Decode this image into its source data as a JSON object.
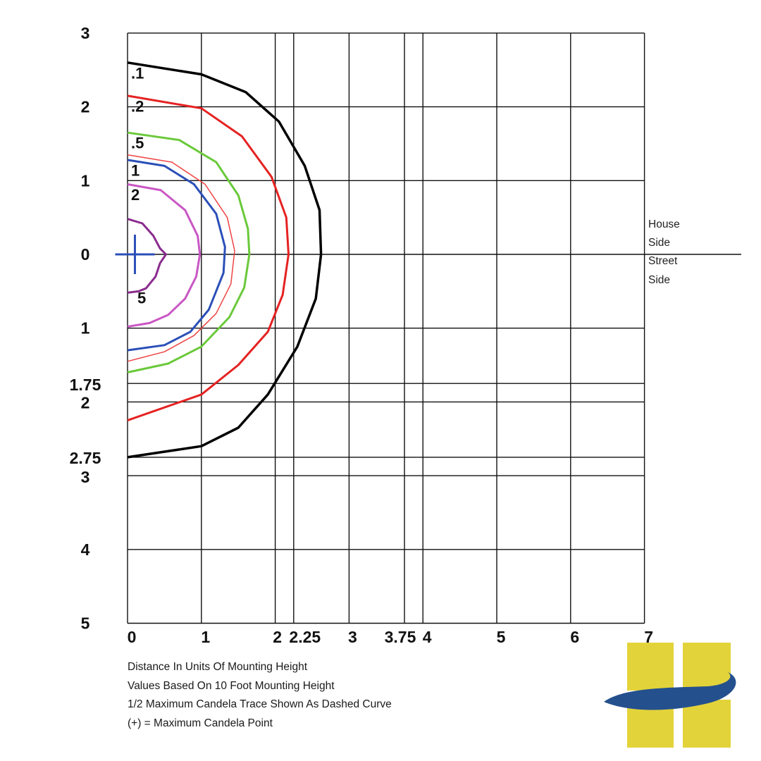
{
  "chart_data": {
    "type": "isofootcandle",
    "x_ticks": [
      {
        "value": 0,
        "label": "0"
      },
      {
        "value": 1,
        "label": "1"
      },
      {
        "value": 2,
        "label": "2"
      },
      {
        "value": 2.25,
        "label": "2.25"
      },
      {
        "value": 3,
        "label": "3"
      },
      {
        "value": 3.75,
        "label": "3.75"
      },
      {
        "value": 4,
        "label": "4"
      },
      {
        "value": 5,
        "label": "5"
      },
      {
        "value": 6,
        "label": "6"
      },
      {
        "value": 7,
        "label": "7"
      }
    ],
    "y_ticks_house": [
      {
        "value": 3,
        "label": "3"
      },
      {
        "value": 2,
        "label": "2"
      },
      {
        "value": 1,
        "label": "1"
      },
      {
        "value": 0,
        "label": "0"
      }
    ],
    "y_ticks_street": [
      {
        "value": 1,
        "label": "1"
      },
      {
        "value": 1.75,
        "label": "1.75"
      },
      {
        "value": 2,
        "label": "2"
      },
      {
        "value": 2.75,
        "label": "2.75"
      },
      {
        "value": 3,
        "label": "3"
      },
      {
        "value": 4,
        "label": "4"
      },
      {
        "value": 5,
        "label": "5"
      }
    ],
    "xlim": [
      0,
      7
    ],
    "ylim_house": [
      0,
      3
    ],
    "ylim_street": [
      0,
      5
    ],
    "grid": true,
    "contours": [
      {
        "label": ".1",
        "color": "#000000",
        "width": 3.5,
        "label_y": 2.5,
        "points": [
          [
            0,
            2.6
          ],
          [
            1,
            2.44
          ],
          [
            1.6,
            2.2
          ],
          [
            2.05,
            1.8
          ],
          [
            2.4,
            1.2
          ],
          [
            2.6,
            0.6
          ],
          [
            2.62,
            0
          ],
          [
            2.55,
            -0.6
          ],
          [
            2.3,
            -1.25
          ],
          [
            1.9,
            -1.9
          ],
          [
            1.5,
            -2.35
          ],
          [
            1,
            -2.6
          ],
          [
            0,
            -2.75
          ]
        ]
      },
      {
        "label": ".2",
        "color": "#e52222",
        "width": 3,
        "label_y": 2.05,
        "points": [
          [
            0,
            2.15
          ],
          [
            1,
            1.98
          ],
          [
            1.55,
            1.6
          ],
          [
            1.95,
            1.05
          ],
          [
            2.15,
            0.5
          ],
          [
            2.18,
            0
          ],
          [
            2.1,
            -0.55
          ],
          [
            1.9,
            -1.05
          ],
          [
            1.5,
            -1.5
          ],
          [
            1,
            -1.9
          ],
          [
            0,
            -2.25
          ]
        ]
      },
      {
        "label": ".5",
        "color": "#6ac93a",
        "width": 3,
        "label_y": 1.55,
        "points": [
          [
            0,
            1.65
          ],
          [
            0.7,
            1.55
          ],
          [
            1.2,
            1.25
          ],
          [
            1.5,
            0.8
          ],
          [
            1.63,
            0.35
          ],
          [
            1.65,
            0
          ],
          [
            1.58,
            -0.45
          ],
          [
            1.38,
            -0.85
          ],
          [
            1,
            -1.25
          ],
          [
            0.55,
            -1.48
          ],
          [
            0,
            -1.6
          ]
        ]
      },
      {
        "label": "",
        "color": "#ee4444",
        "width": 1.5,
        "label_y": 0,
        "points": [
          [
            0,
            1.35
          ],
          [
            0.6,
            1.25
          ],
          [
            1.05,
            0.95
          ],
          [
            1.35,
            0.5
          ],
          [
            1.45,
            0.05
          ],
          [
            1.4,
            -0.4
          ],
          [
            1.2,
            -0.8
          ],
          [
            0.9,
            -1.1
          ],
          [
            0.5,
            -1.32
          ],
          [
            0,
            -1.45
          ]
        ]
      },
      {
        "label": "1",
        "color": "#2b4fb8",
        "width": 3,
        "label_y": 1.18,
        "points": [
          [
            0,
            1.28
          ],
          [
            0.5,
            1.2
          ],
          [
            0.9,
            0.95
          ],
          [
            1.2,
            0.55
          ],
          [
            1.32,
            0.1
          ],
          [
            1.3,
            -0.25
          ],
          [
            1.1,
            -0.75
          ],
          [
            0.85,
            -1.05
          ],
          [
            0.5,
            -1.23
          ],
          [
            0,
            -1.3
          ]
        ]
      },
      {
        "label": "2",
        "color": "#c957c4",
        "width": 3,
        "label_y": 0.85,
        "points": [
          [
            0,
            0.95
          ],
          [
            0.45,
            0.87
          ],
          [
            0.78,
            0.6
          ],
          [
            0.95,
            0.25
          ],
          [
            0.98,
            0
          ],
          [
            0.93,
            -0.3
          ],
          [
            0.78,
            -0.6
          ],
          [
            0.55,
            -0.82
          ],
          [
            0.3,
            -0.93
          ],
          [
            0,
            -0.98
          ]
        ]
      },
      {
        "label": "5",
        "color": "#8a2c8d",
        "width": 3,
        "label_y": -0.55,
        "points": [
          [
            0,
            0.48
          ],
          [
            0.2,
            0.42
          ],
          [
            0.35,
            0.25
          ],
          [
            0.44,
            0.08
          ],
          [
            0.52,
            0
          ],
          [
            0.44,
            -0.12
          ],
          [
            0.38,
            -0.3
          ],
          [
            0.25,
            -0.46
          ],
          [
            0.15,
            -0.5
          ],
          [
            0,
            -0.52
          ]
        ]
      }
    ],
    "max_candela_point": {
      "x": 0.1,
      "y": 0
    },
    "notes": [
      "Distance In Units Of Mounting Height",
      "Values Based On 10 Foot Mounting Height",
      "1/2 Maximum Candela Trace Shown As Dashed Curve",
      "(+) = Maximum Candela Point"
    ],
    "side_labels": {
      "house": [
        "House",
        "Side"
      ],
      "street": [
        "Street",
        "Side"
      ]
    }
  },
  "colors": {
    "grid": "#111111",
    "logo_yellow": "#e3d33a",
    "logo_blue": "#24508e"
  }
}
